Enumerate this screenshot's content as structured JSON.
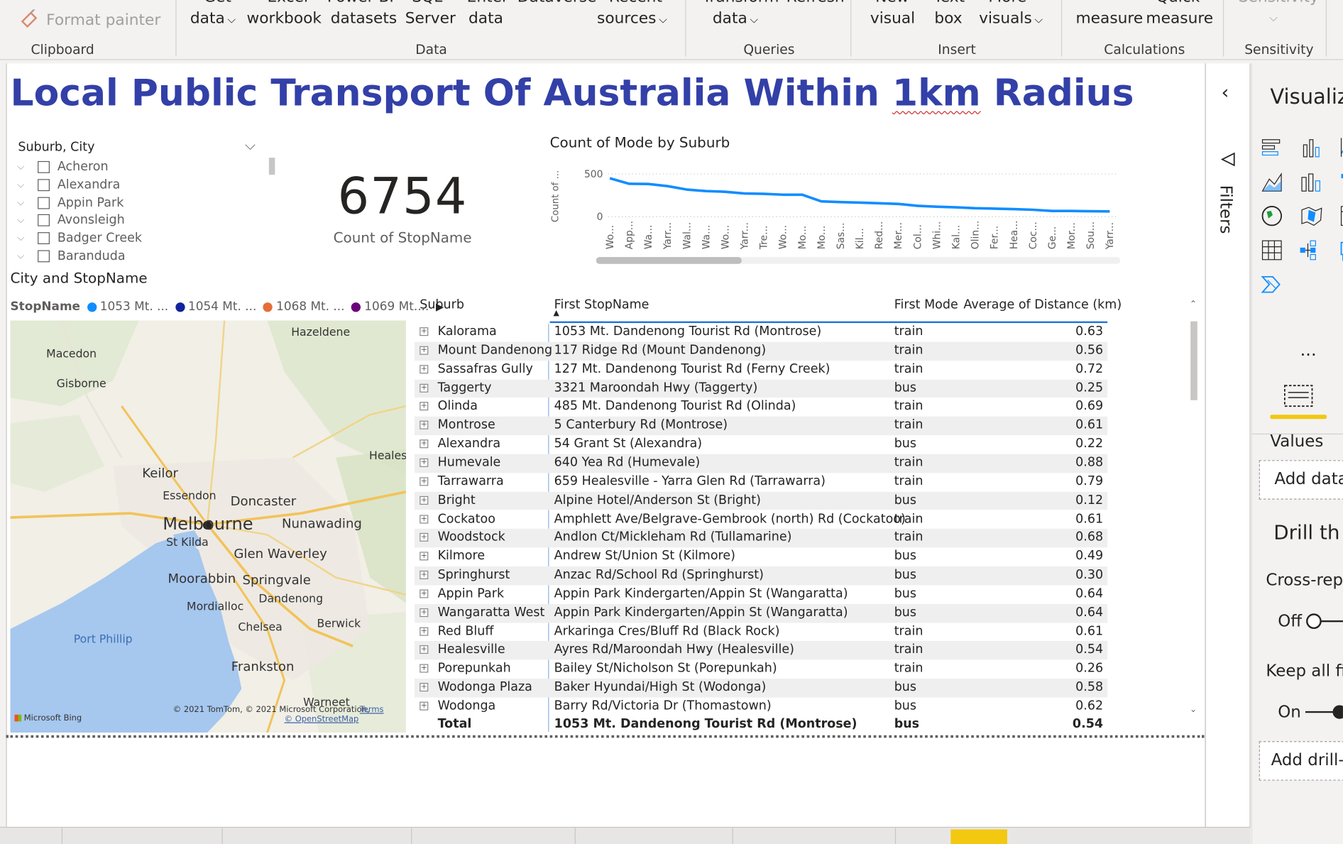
{
  "ribbon": {
    "clipboard_label": "Clipboard",
    "format_painter": "Format painter",
    "data_label": "Data",
    "queries_label": "Queries",
    "insert_label": "Insert",
    "calculations_label": "Calculations",
    "sensitivity_label": "Sensitivity",
    "get_top": "Get",
    "get_data": "data",
    "excel_top": "Excel",
    "excel_workbook": "workbook",
    "powerbi_top": "Power BI",
    "powerbi_datasets": "datasets",
    "sql_top": "SQL",
    "sql_server": "Server",
    "enter_top": "Enter",
    "enter_data": "data",
    "dataverse": "Dataverse",
    "recent_top": "Recent",
    "recent_sources": "sources",
    "transform_top": "Transform",
    "transform_data": "data",
    "refresh_top": "Refresh",
    "new_top": "New",
    "new_visual": "visual",
    "text_top": "Text",
    "text_box": "box",
    "more_top": "More",
    "more_visuals": "visuals",
    "new_measure": "measure",
    "quick_top": "Quick",
    "quick_measure": "measure",
    "sensitivity_top": "Sensitivity"
  },
  "page": {
    "title_part1": "Local Public Transport Of Australia Within ",
    "title_underlined": "1km",
    "title_part2": " Radius"
  },
  "slicer": {
    "header": "Suburb, City",
    "items": [
      "Acheron",
      "Alexandra",
      "Appin Park",
      "Avonsleigh",
      "Badger Creek",
      "Baranduda"
    ]
  },
  "card": {
    "value": "6754",
    "label": "Count of StopName"
  },
  "chart_data": {
    "type": "line",
    "title": "Count of Mode by Suburb",
    "ylabel": "Count of ...",
    "xlabel": "",
    "ylim": [
      0,
      500
    ],
    "yticks": [
      "0",
      "500"
    ],
    "categories": [
      "Wo...",
      "App...",
      "Wa...",
      "Yarr...",
      "Wal...",
      "Wa...",
      "Wo...",
      "Yarr...",
      "Tre...",
      "Wo...",
      "Mo...",
      "Mo...",
      "Sas...",
      "Kil...",
      "Red...",
      "Mer...",
      "Col...",
      "Whi...",
      "Kal...",
      "Olin...",
      "Fer...",
      "Hea...",
      "Coc...",
      "Ge...",
      "Mor...",
      "Sou...",
      "Yarr..."
    ],
    "series": [
      {
        "values": [
          450,
          385,
          383,
          358,
          318,
          300,
          292,
          272,
          268,
          258,
          258,
          180,
          172,
          165,
          158,
          150,
          128,
          118,
          110,
          100,
          95,
          90,
          82,
          68,
          68,
          65,
          63
        ],
        "color": "#118dff"
      }
    ],
    "grid": true,
    "legend": "none"
  },
  "map": {
    "title": "City and StopName",
    "legend_title": "StopName",
    "legend_items": [
      {
        "label": "1053 Mt. ...",
        "color": "#118dff"
      },
      {
        "label": "1054 Mt. ...",
        "color": "#12239e"
      },
      {
        "label": "1068 Mt. ...",
        "color": "#e66c37"
      },
      {
        "label": "1069 Mt....",
        "color": "#6b007b"
      }
    ],
    "places": {
      "hazeldene": "Hazeldene",
      "macedon": "Macedon",
      "gisborne": "Gisborne",
      "healesville": "Healesv",
      "keilor": "Keilor",
      "essendon": "Essendon",
      "doncaster": "Doncaster",
      "melbourne": "Melbourne",
      "nunawading": "Nunawading",
      "st_kilda": "St Kilda",
      "glen_waverley": "Glen Waverley",
      "moorabbin": "Moorabbin",
      "springvale": "Springvale",
      "dandenong": "Dandenong",
      "mordialloc": "Mordialloc",
      "chelsea": "Chelsea",
      "berwick": "Berwick",
      "port_phillip": "Port Phillip",
      "frankston": "Frankston",
      "warneet": "Warneet"
    },
    "bing": "Microsoft Bing",
    "copyright": "© 2021 TomTom, © 2021 Microsoft Corporation,",
    "terms": "Terms",
    "osm": "© OpenStreetMap"
  },
  "table": {
    "headers": {
      "suburb": "Suburb",
      "stop": "First StopName",
      "mode": "First Mode",
      "dist": "Average of Distance (km)"
    },
    "rows": [
      {
        "suburb": "Kalorama",
        "stop": "1053 Mt. Dandenong Tourist Rd (Montrose)",
        "mode": "train",
        "dist": "0.63"
      },
      {
        "suburb": "Mount Dandenong",
        "stop": "117 Ridge Rd (Mount Dandenong)",
        "mode": "train",
        "dist": "0.56"
      },
      {
        "suburb": "Sassafras Gully",
        "stop": "127 Mt. Dandenong Tourist Rd (Ferny Creek)",
        "mode": "train",
        "dist": "0.72"
      },
      {
        "suburb": "Taggerty",
        "stop": "3321 Maroondah Hwy (Taggerty)",
        "mode": "bus",
        "dist": "0.25"
      },
      {
        "suburb": "Olinda",
        "stop": "485 Mt. Dandenong Tourist Rd (Olinda)",
        "mode": "train",
        "dist": "0.69"
      },
      {
        "suburb": "Montrose",
        "stop": "5 Canterbury Rd (Montrose)",
        "mode": "train",
        "dist": "0.61"
      },
      {
        "suburb": "Alexandra",
        "stop": "54 Grant St (Alexandra)",
        "mode": "bus",
        "dist": "0.22"
      },
      {
        "suburb": "Humevale",
        "stop": "640 Yea Rd (Humevale)",
        "mode": "train",
        "dist": "0.88"
      },
      {
        "suburb": "Tarrawarra",
        "stop": "659 Healesville - Yarra Glen Rd (Tarrawarra)",
        "mode": "train",
        "dist": "0.79"
      },
      {
        "suburb": "Bright",
        "stop": "Alpine Hotel/Anderson St (Bright)",
        "mode": "bus",
        "dist": "0.12"
      },
      {
        "suburb": "Cockatoo",
        "stop": "Amphlett Ave/Belgrave-Gembrook (north) Rd (Cockatoo)",
        "mode": "train",
        "dist": "0.61"
      },
      {
        "suburb": "Woodstock",
        "stop": "Andlon Ct/Mickleham Rd (Tullamarine)",
        "mode": "train",
        "dist": "0.68"
      },
      {
        "suburb": "Kilmore",
        "stop": "Andrew St/Union St (Kilmore)",
        "mode": "bus",
        "dist": "0.49"
      },
      {
        "suburb": "Springhurst",
        "stop": "Anzac Rd/School Rd (Springhurst)",
        "mode": "bus",
        "dist": "0.30"
      },
      {
        "suburb": "Appin Park",
        "stop": "Appin Park Kindergarten/Appin St (Wangaratta)",
        "mode": "bus",
        "dist": "0.64"
      },
      {
        "suburb": "Wangaratta West",
        "stop": "Appin Park Kindergarten/Appin St (Wangaratta)",
        "mode": "bus",
        "dist": "0.64"
      },
      {
        "suburb": "Red Bluff",
        "stop": "Arkaringa Cres/Bluff Rd (Black Rock)",
        "mode": "train",
        "dist": "0.61"
      },
      {
        "suburb": "Healesville",
        "stop": "Ayres Rd/Maroondah Hwy (Healesville)",
        "mode": "train",
        "dist": "0.54"
      },
      {
        "suburb": "Porepunkah",
        "stop": "Bailey St/Nicholson St (Porepunkah)",
        "mode": "train",
        "dist": "0.26"
      },
      {
        "suburb": "Wodonga Plaza",
        "stop": "Baker Hyundai/High St (Wodonga)",
        "mode": "bus",
        "dist": "0.58"
      },
      {
        "suburb": "Wodonga",
        "stop": "Barry Rd/Victoria Dr (Thomastown)",
        "mode": "bus",
        "dist": "0.62"
      }
    ],
    "total": {
      "suburb": "Total",
      "stop": "1053 Mt. Dandenong Tourist Rd (Montrose)",
      "mode": "bus",
      "dist": "0.54"
    }
  },
  "filters": {
    "label": "Filters"
  },
  "viz_pane": {
    "title": "Visualiz",
    "values_label": "Values",
    "add_data": "Add data",
    "drill_label": "Drill th",
    "cross_report": "Cross-repo",
    "off_label": "Off",
    "keep_filters": "Keep all fil",
    "on_label": "On",
    "add_drill": "Add drill-"
  }
}
